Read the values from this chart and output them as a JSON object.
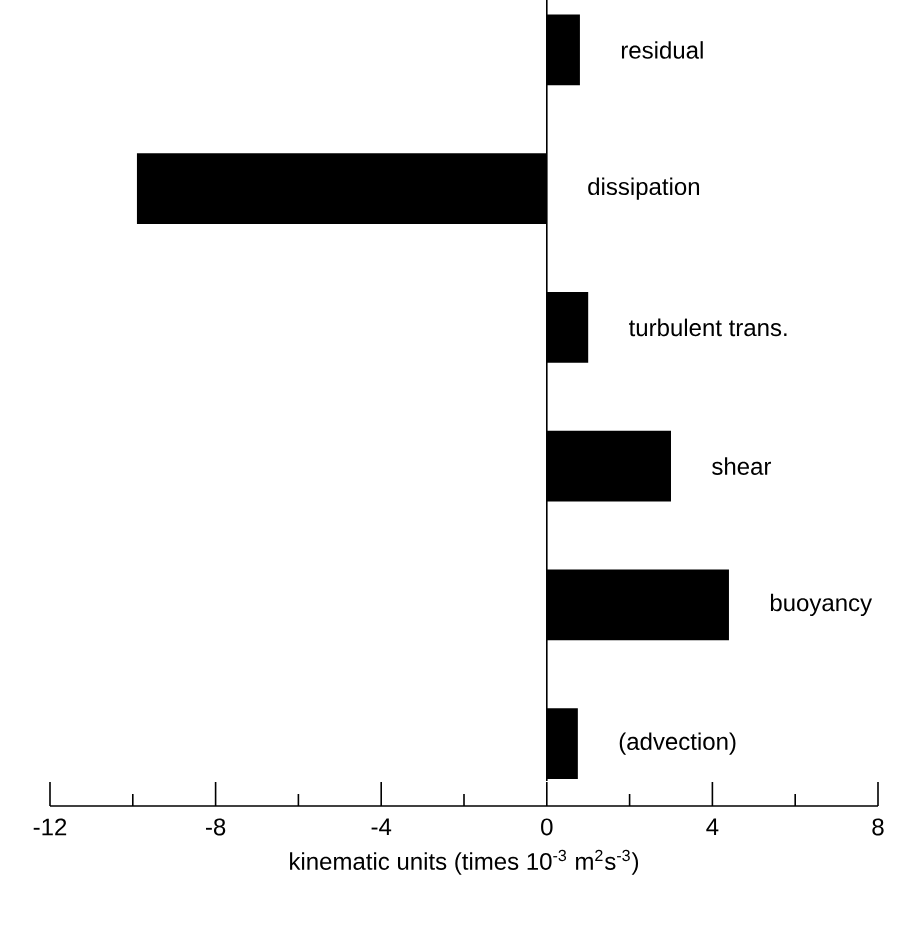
{
  "chart_data": {
    "type": "bar",
    "orientation": "horizontal",
    "xlabel": "kinematic units (times 10$^{-3}$ m$^{2}$s$^{-3}$)",
    "categories": [
      "residual",
      "dissipation",
      "turbulent trans.",
      "shear",
      "buoyancy",
      "(advection)"
    ],
    "values": [
      0.8,
      -9.9,
      1.0,
      3.0,
      4.4,
      0.75
    ],
    "color": "#000000",
    "xlim": [
      -12,
      8
    ],
    "xticks": [
      -12,
      {
        "value": -10,
        "label": null
      },
      -8,
      {
        "value": -6,
        "label": null
      },
      -4,
      {
        "value": -2,
        "label": null
      },
      0,
      {
        "value": 2,
        "label": null
      },
      4,
      {
        "value": 6,
        "label": null
      },
      8
    ],
    "grid": false
  }
}
